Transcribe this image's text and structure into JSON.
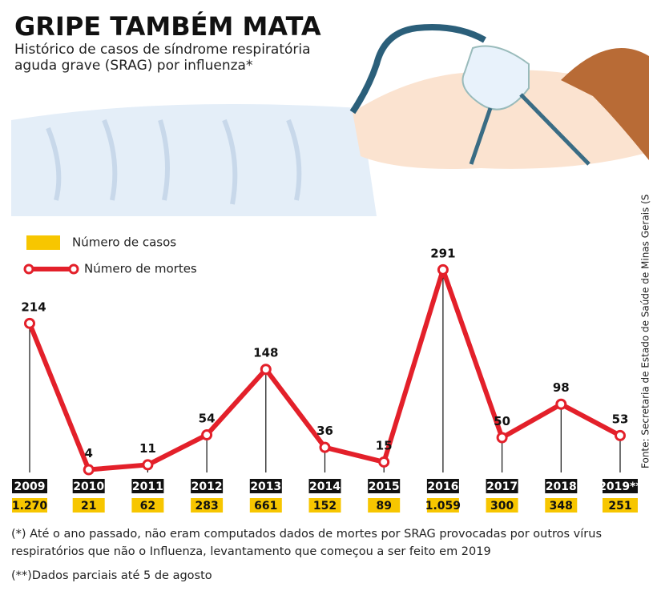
{
  "chart_data": {
    "type": "line",
    "title": "GRIPE TAMBÉM MATA",
    "subtitle": "Histórico de casos de síndrome respiratória aguda grave (SRAG) por influenza*",
    "source": "Fonte: Secretaria de Estado de Saúde de Minas Gerais (S",
    "categories": [
      "2009",
      "2010",
      "2011",
      "2012",
      "2013",
      "2014",
      "2015",
      "2016",
      "2017",
      "2018",
      "2019**"
    ],
    "series": [
      {
        "name": "Número de casos",
        "color": "#f7c600",
        "values": [
          1270,
          21,
          62,
          283,
          661,
          152,
          89,
          1059,
          300,
          348,
          251
        ],
        "value_labels": [
          "1.270",
          "21",
          "62",
          "283",
          "661",
          "152",
          "89",
          "1.059",
          "300",
          "348",
          "251"
        ]
      },
      {
        "name": "Número de mortes",
        "color": "#e3202a",
        "values": [
          214,
          4,
          11,
          54,
          148,
          36,
          15,
          291,
          50,
          98,
          53
        ]
      }
    ],
    "ylim": [
      0,
      300
    ],
    "notes": [
      "(*) Até o ano passado, não eram computados dados de mortes por SRAG provocadas por outros vírus respiratórios que não o Influenza, levantamento que começou a ser feito em 2019",
      "(**)Dados parciais até 5 de agosto"
    ]
  }
}
